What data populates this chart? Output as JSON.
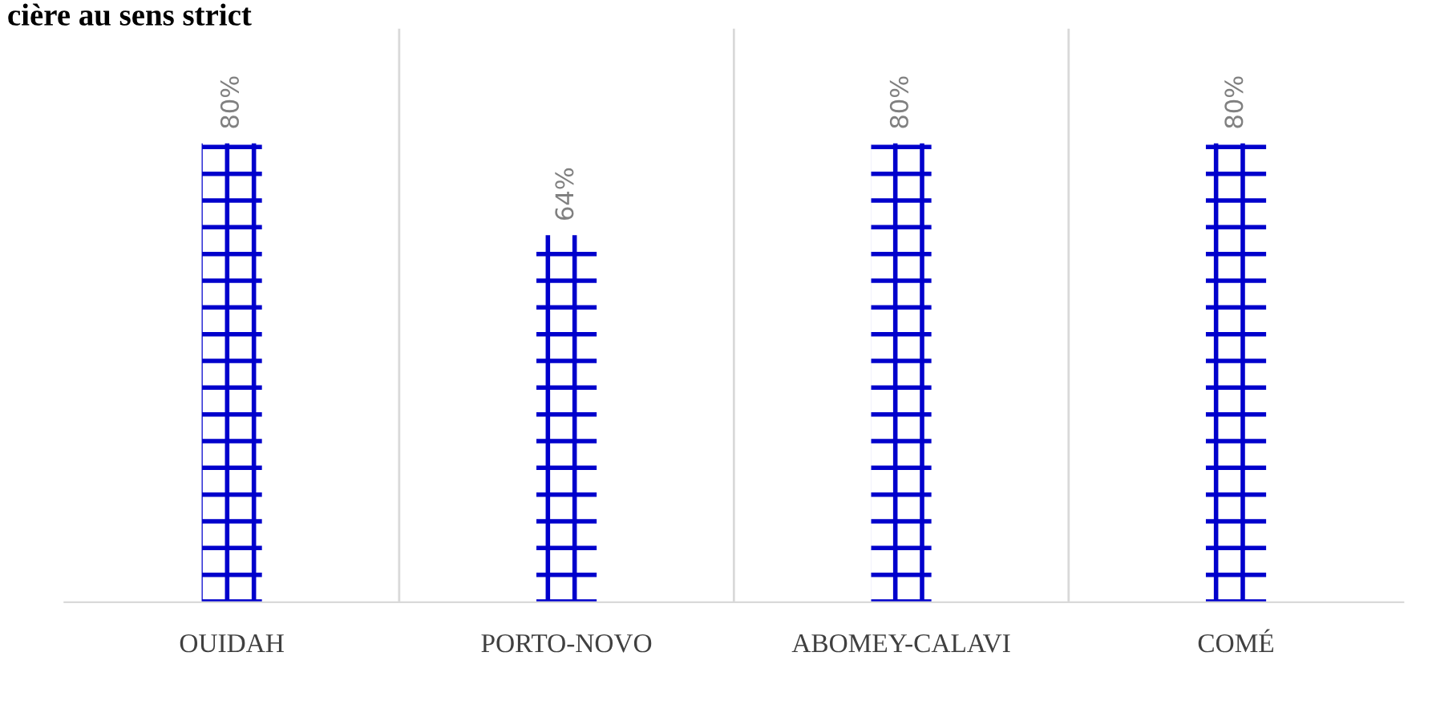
{
  "chart_data": {
    "type": "bar",
    "title": "cière au sens strict",
    "categories": [
      "OUIDAH",
      "PORTO-NOVO",
      "ABOMEY-CALAVI",
      "COMÉ"
    ],
    "values": [
      80,
      64,
      80,
      80
    ],
    "value_labels": [
      "80%",
      "64%",
      "80%",
      "80%"
    ],
    "color": "#0000cc",
    "grid": "x",
    "legend": false
  }
}
